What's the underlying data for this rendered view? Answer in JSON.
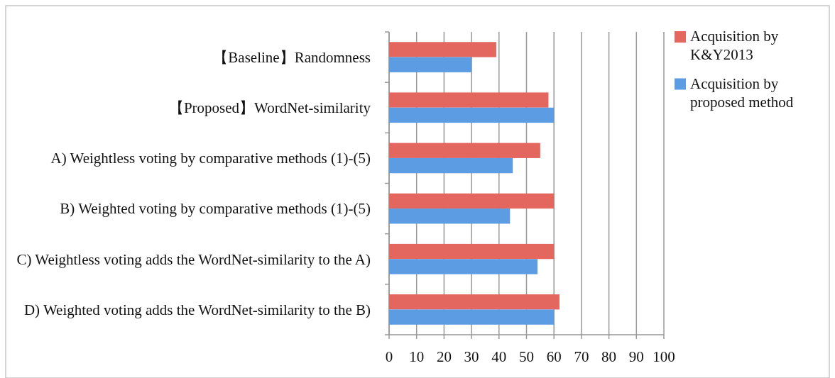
{
  "chart_data": {
    "type": "bar",
    "orientation": "horizontal",
    "categories": [
      "【Baseline】Randomness",
      "【Proposed】WordNet-similarity",
      "A) Weightless voting by comparative methods (1)-(5)",
      "B) Weighted voting by comparative methods (1)-(5)",
      "C) Weightless voting adds the WordNet-similarity to the A)",
      "D) Weighted voting adds the WordNet-similarity to the B)"
    ],
    "series": [
      {
        "name": "Acquisition by K&Y2013",
        "color": "#e4675f",
        "values": [
          39,
          58,
          55,
          60,
          60,
          62
        ]
      },
      {
        "name": "Acquisition by proposed method",
        "color": "#5c9ce2",
        "values": [
          30,
          60,
          45,
          44,
          54,
          60
        ]
      }
    ],
    "xlim": [
      0,
      100
    ],
    "xticks": [
      0,
      10,
      20,
      30,
      40,
      50,
      60,
      70,
      80,
      90,
      100
    ],
    "grid": "x",
    "legend": "right"
  }
}
